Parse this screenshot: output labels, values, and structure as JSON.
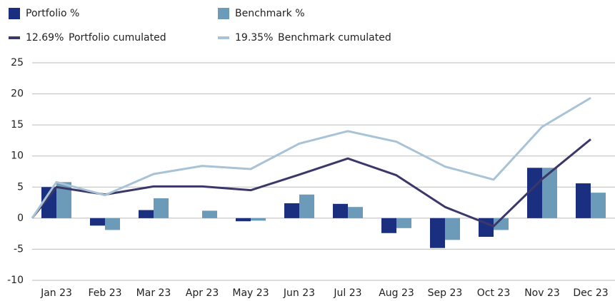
{
  "chart_data": {
    "type": "bar-line",
    "categories": [
      null,
      "Jan 23",
      "Feb 23",
      "Mar 23",
      "Apr 23",
      "May 23",
      "Jun 23",
      "Jul 23",
      "Aug 23",
      "Sep 23",
      "Oct 23",
      "Nov 23",
      "Dec 23"
    ],
    "series": [
      {
        "name": "Portfolio %",
        "type": "bar",
        "color": "#1b2f80",
        "values": [
          null,
          5.0,
          -1.2,
          1.3,
          0,
          -0.5,
          2.4,
          2.3,
          -2.4,
          -4.8,
          -3.0,
          8.1,
          5.6
        ]
      },
      {
        "name": "Benchmark %",
        "type": "bar",
        "color": "#6b9bb9",
        "values": [
          null,
          5.8,
          -1.9,
          3.2,
          1.2,
          -0.4,
          3.8,
          1.8,
          -1.6,
          -3.5,
          -1.9,
          8.1,
          4.1
        ]
      },
      {
        "name": "Portfolio cumulated",
        "legend_label": "12.69%",
        "type": "line",
        "color": "#3b3769",
        "values": [
          0,
          5.0,
          3.8,
          5.1,
          5.1,
          4.5,
          7.0,
          9.6,
          6.9,
          1.8,
          -1.3,
          6.3,
          12.69
        ]
      },
      {
        "name": "Benchmark cumulated",
        "legend_label": "19.35%",
        "type": "line",
        "color": "#a8c3d6",
        "values": [
          0,
          5.8,
          3.7,
          7.1,
          8.4,
          7.9,
          12.0,
          14.0,
          12.3,
          8.3,
          6.2,
          14.7,
          19.35
        ]
      }
    ],
    "ylim": [
      -10,
      25
    ],
    "yticks": [
      -10,
      -5,
      0,
      5,
      10,
      15,
      20,
      25
    ],
    "grid": true
  }
}
